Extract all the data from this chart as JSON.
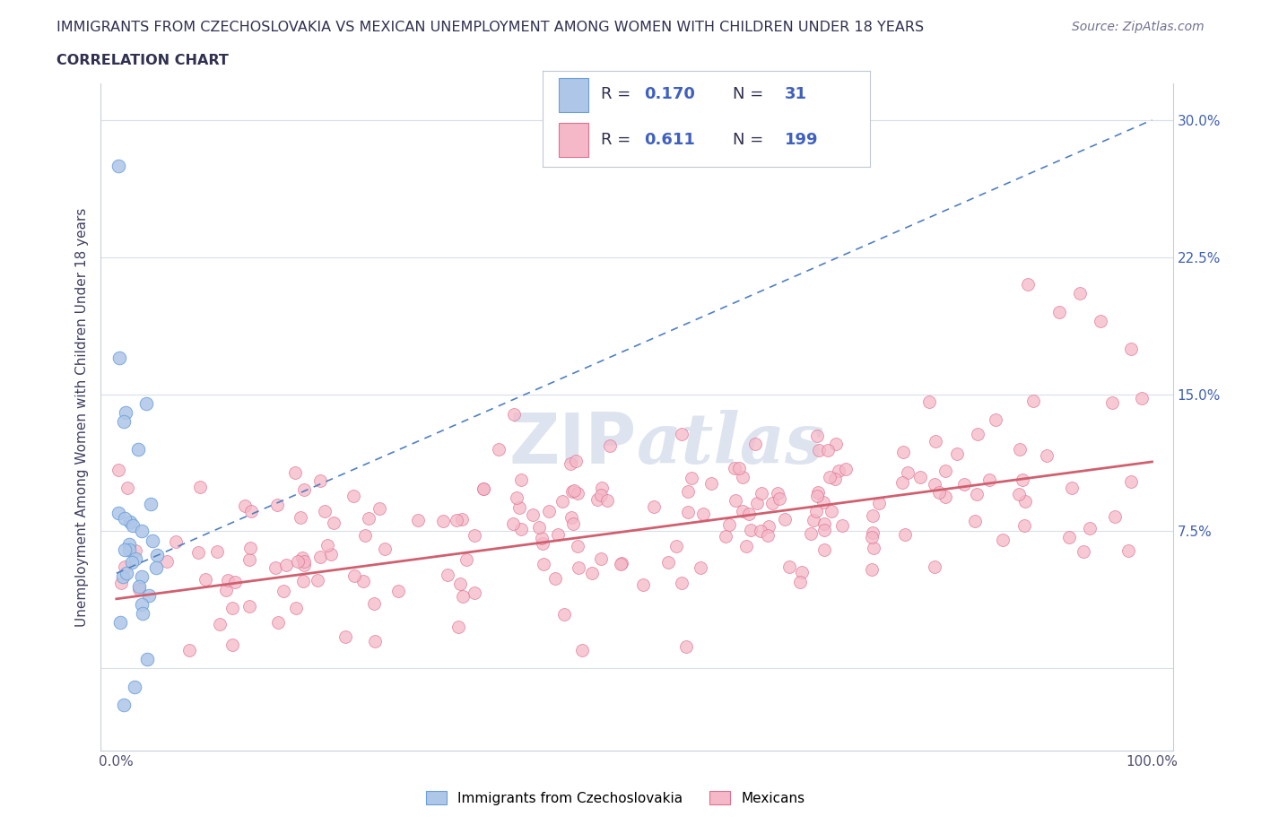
{
  "title": "IMMIGRANTS FROM CZECHOSLOVAKIA VS MEXICAN UNEMPLOYMENT AMONG WOMEN WITH CHILDREN UNDER 18 YEARS",
  "subtitle": "CORRELATION CHART",
  "source": "Source: ZipAtlas.com",
  "ylabel": "Unemployment Among Women with Children Under 18 years",
  "blue_color": "#aec6e8",
  "blue_edge_color": "#6a9fd8",
  "pink_color": "#f4b8c8",
  "pink_edge_color": "#e07090",
  "trend_blue_color": "#5080c0",
  "trend_pink_color": "#d06070",
  "grid_color": "#d8dde8",
  "background_color": "#ffffff",
  "title_color": "#303050",
  "watermark_color": "#dde4ef",
  "legend_text_color": "#303050",
  "legend_value_color": "#4060c0",
  "source_color": "#707090"
}
